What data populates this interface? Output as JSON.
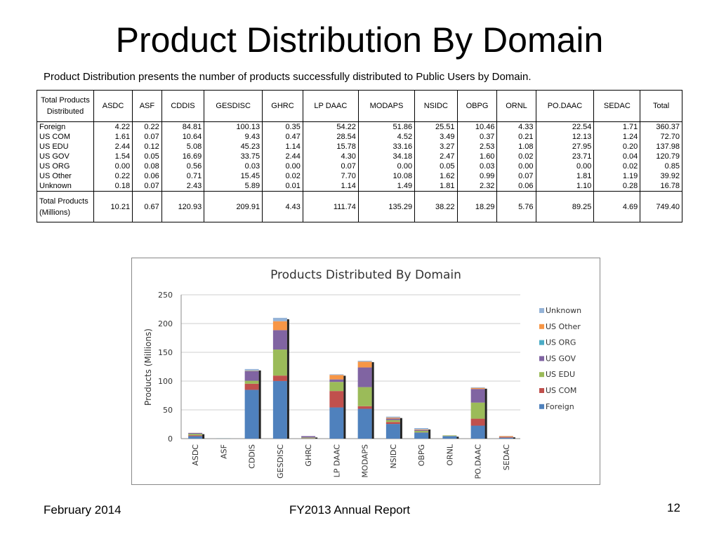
{
  "slide": {
    "title": "Product Distribution By Domain",
    "subtitle": "Product Distribution presents the number of products successfully distributed to Public Users by Domain.",
    "footer_left": "February 2014",
    "footer_center": "FY2013 Annual Report",
    "page_number": "12"
  },
  "table": {
    "corner_label": "Total Products Distributed",
    "columns": [
      "ASDC",
      "ASF",
      "CDDIS",
      "GESDISC",
      "GHRC",
      "LP DAAC",
      "MODAPS",
      "NSIDC",
      "OBPG",
      "ORNL",
      "PO.DAAC",
      "SEDAC",
      "Total"
    ],
    "rows": [
      {
        "label": "Foreign",
        "values": [
          "4.22",
          "0.22",
          "84.81",
          "100.13",
          "0.35",
          "54.22",
          "51.86",
          "25.51",
          "10.46",
          "4.33",
          "22.54",
          "1.71",
          "360.37"
        ]
      },
      {
        "label": "US COM",
        "values": [
          "1.61",
          "0.07",
          "10.64",
          "9.43",
          "0.47",
          "28.54",
          "4.52",
          "3.49",
          "0.37",
          "0.21",
          "12.13",
          "1.24",
          "72.70"
        ]
      },
      {
        "label": "US EDU",
        "values": [
          "2.44",
          "0.12",
          "5.08",
          "45.23",
          "1.14",
          "15.78",
          "33.16",
          "3.27",
          "2.53",
          "1.08",
          "27.95",
          "0.20",
          "137.98"
        ]
      },
      {
        "label": "US GOV",
        "values": [
          "1.54",
          "0.05",
          "16.69",
          "33.75",
          "2.44",
          "4.30",
          "34.18",
          "2.47",
          "1.60",
          "0.02",
          "23.71",
          "0.04",
          "120.79"
        ]
      },
      {
        "label": "US ORG",
        "values": [
          "0.00",
          "0.08",
          "0.56",
          "0.03",
          "0.00",
          "0.07",
          "0.00",
          "0.05",
          "0.03",
          "0.00",
          "0.00",
          "0.02",
          "0.85"
        ]
      },
      {
        "label": "US Other",
        "values": [
          "0.22",
          "0.06",
          "0.71",
          "15.45",
          "0.02",
          "7.70",
          "10.08",
          "1.62",
          "0.99",
          "0.07",
          "1.81",
          "1.19",
          "39.92"
        ]
      },
      {
        "label": "Unknown",
        "values": [
          "0.18",
          "0.07",
          "2.43",
          "5.89",
          "0.01",
          "1.14",
          "1.49",
          "1.81",
          "2.32",
          "0.06",
          "1.10",
          "0.28",
          "16.78"
        ]
      }
    ],
    "total_row": {
      "label": "Total Products (Millions)",
      "values": [
        "10.21",
        "0.67",
        "120.93",
        "209.91",
        "4.43",
        "111.74",
        "135.29",
        "38.22",
        "18.29",
        "5.76",
        "89.25",
        "4.69",
        "749.40"
      ]
    }
  },
  "chart_data": {
    "type": "bar",
    "stacked": true,
    "title": "Products Distributed By Domain",
    "ylabel": "Products (Millions)",
    "xlabel": "",
    "ylim": [
      0,
      250
    ],
    "yticks": [
      0,
      50,
      100,
      150,
      200,
      250
    ],
    "grid": true,
    "legend_position": "right",
    "categories": [
      "ASDC",
      "ASF",
      "CDDIS",
      "GESDISC",
      "GHRC",
      "LP DAAC",
      "MODAPS",
      "NSIDC",
      "OBPG",
      "ORNL",
      "PO.DAAC",
      "SEDAC"
    ],
    "series": [
      {
        "name": "Foreign",
        "color": "#4f81bd",
        "values": [
          4.22,
          0.22,
          84.81,
          100.13,
          0.35,
          54.22,
          51.86,
          25.51,
          10.46,
          4.33,
          22.54,
          1.71
        ]
      },
      {
        "name": "US COM",
        "color": "#c0504d",
        "values": [
          1.61,
          0.07,
          10.64,
          9.43,
          0.47,
          28.54,
          4.52,
          3.49,
          0.37,
          0.21,
          12.13,
          1.24
        ]
      },
      {
        "name": "US EDU",
        "color": "#9bbb59",
        "values": [
          2.44,
          0.12,
          5.08,
          45.23,
          1.14,
          15.78,
          33.16,
          3.27,
          2.53,
          1.08,
          27.95,
          0.2
        ]
      },
      {
        "name": "US GOV",
        "color": "#8064a2",
        "values": [
          1.54,
          0.05,
          16.69,
          33.75,
          2.44,
          4.3,
          34.18,
          2.47,
          1.6,
          0.02,
          23.71,
          0.04
        ]
      },
      {
        "name": "US ORG",
        "color": "#4bacc6",
        "values": [
          0.0,
          0.08,
          0.56,
          0.03,
          0.0,
          0.07,
          0.0,
          0.05,
          0.03,
          0.0,
          0.0,
          0.02
        ]
      },
      {
        "name": "US Other",
        "color": "#f79646",
        "values": [
          0.22,
          0.06,
          0.71,
          15.45,
          0.02,
          7.7,
          10.08,
          1.62,
          0.99,
          0.07,
          1.81,
          1.19
        ]
      },
      {
        "name": "Unknown",
        "color": "#95b3d7",
        "values": [
          0.18,
          0.07,
          2.43,
          5.89,
          0.01,
          1.14,
          1.49,
          1.81,
          2.32,
          0.06,
          1.1,
          0.28
        ]
      }
    ],
    "legend_order": [
      "Unknown",
      "US Other",
      "US ORG",
      "US GOV",
      "US EDU",
      "US COM",
      "Foreign"
    ]
  }
}
